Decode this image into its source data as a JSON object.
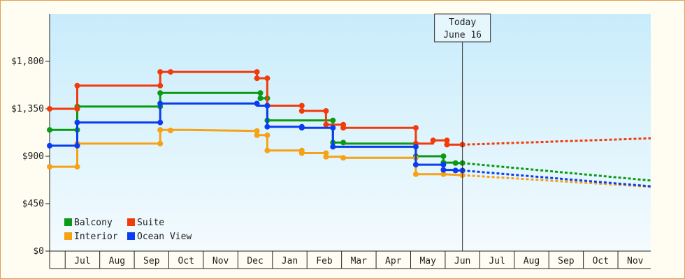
{
  "chart_data": {
    "type": "line",
    "title": "",
    "xlabel": "",
    "ylabel": "",
    "ylim": [
      0,
      2250
    ],
    "yticks": [
      {
        "value": 0,
        "label": "$0"
      },
      {
        "value": 450,
        "label": "$450"
      },
      {
        "value": 900,
        "label": "$900"
      },
      {
        "value": 1350,
        "label": "$1,350"
      },
      {
        "value": 1800,
        "label": "$1,800"
      }
    ],
    "xlim": [
      0,
      17.4
    ],
    "months": [
      {
        "label": "Jul",
        "start": 0.45
      },
      {
        "label": "Aug",
        "start": 1.45
      },
      {
        "label": "Sep",
        "start": 2.45
      },
      {
        "label": "Oct",
        "start": 3.45
      },
      {
        "label": "Nov",
        "start": 4.45
      },
      {
        "label": "Dec",
        "start": 5.45
      },
      {
        "label": "Jan",
        "start": 6.45
      },
      {
        "label": "Feb",
        "start": 7.45
      },
      {
        "label": "Mar",
        "start": 8.45
      },
      {
        "label": "Apr",
        "start": 9.45
      },
      {
        "label": "May",
        "start": 10.45
      },
      {
        "label": "Jun",
        "start": 11.45
      },
      {
        "label": "Jul",
        "start": 12.45
      },
      {
        "label": "Aug",
        "start": 13.45
      },
      {
        "label": "Sep",
        "start": 14.45
      },
      {
        "label": "Oct",
        "start": 15.45
      },
      {
        "label": "Nov",
        "start": 16.45
      }
    ],
    "today": {
      "x": 11.95,
      "line1": "Today",
      "line2": "June 16"
    },
    "series": [
      {
        "name": "Balcony",
        "color": "#0a9a14",
        "points": [
          [
            0,
            1150
          ],
          [
            0.8,
            1150
          ],
          [
            0.8,
            1372
          ],
          [
            3.2,
            1372
          ],
          [
            3.2,
            1500
          ],
          [
            6.1,
            1500
          ],
          [
            6.1,
            1450
          ],
          [
            6.3,
            1450
          ],
          [
            6.3,
            1240
          ],
          [
            8.2,
            1240
          ],
          [
            8.2,
            1030
          ],
          [
            8.5,
            1030
          ],
          [
            8.5,
            1020
          ],
          [
            10.6,
            1020
          ],
          [
            10.6,
            900
          ],
          [
            11.4,
            900
          ],
          [
            11.4,
            840
          ],
          [
            11.75,
            840
          ],
          [
            11.75,
            835
          ],
          [
            11.95,
            835
          ]
        ],
        "markers": [
          [
            0,
            1150
          ],
          [
            0.8,
            1150
          ],
          [
            0.8,
            1372
          ],
          [
            3.2,
            1372
          ],
          [
            3.2,
            1500
          ],
          [
            6.1,
            1500
          ],
          [
            6.1,
            1450
          ],
          [
            6.3,
            1450
          ],
          [
            6.3,
            1240
          ],
          [
            8.2,
            1240
          ],
          [
            8.2,
            1030
          ],
          [
            8.5,
            1030
          ],
          [
            10.6,
            1020
          ],
          [
            10.6,
            900
          ],
          [
            11.4,
            900
          ],
          [
            11.4,
            840
          ],
          [
            11.75,
            835
          ],
          [
            11.95,
            835
          ]
        ],
        "forecast": [
          [
            11.95,
            835
          ],
          [
            17.4,
            670
          ]
        ]
      },
      {
        "name": "Suite",
        "color": "#f03c0a",
        "points": [
          [
            0,
            1350
          ],
          [
            0.8,
            1350
          ],
          [
            0.8,
            1570
          ],
          [
            3.2,
            1570
          ],
          [
            3.2,
            1700
          ],
          [
            3.5,
            1700
          ],
          [
            6.0,
            1700
          ],
          [
            6.0,
            1640
          ],
          [
            6.3,
            1640
          ],
          [
            6.3,
            1380
          ],
          [
            7.3,
            1380
          ],
          [
            7.3,
            1330
          ],
          [
            8.0,
            1330
          ],
          [
            8.0,
            1200
          ],
          [
            8.5,
            1200
          ],
          [
            8.5,
            1170
          ],
          [
            10.6,
            1170
          ],
          [
            10.6,
            1020
          ],
          [
            11.1,
            1020
          ],
          [
            11.1,
            1050
          ],
          [
            11.5,
            1050
          ],
          [
            11.5,
            1010
          ],
          [
            11.95,
            1010
          ]
        ],
        "markers": [
          [
            0,
            1350
          ],
          [
            0.8,
            1350
          ],
          [
            0.8,
            1570
          ],
          [
            3.2,
            1570
          ],
          [
            3.2,
            1700
          ],
          [
            3.5,
            1700
          ],
          [
            6.0,
            1700
          ],
          [
            6.0,
            1640
          ],
          [
            6.3,
            1640
          ],
          [
            6.3,
            1380
          ],
          [
            7.3,
            1380
          ],
          [
            7.3,
            1330
          ],
          [
            8.0,
            1330
          ],
          [
            8.0,
            1200
          ],
          [
            8.5,
            1200
          ],
          [
            8.5,
            1170
          ],
          [
            10.6,
            1170
          ],
          [
            10.6,
            1020
          ],
          [
            11.1,
            1050
          ],
          [
            11.5,
            1050
          ],
          [
            11.5,
            1010
          ],
          [
            11.95,
            1010
          ]
        ],
        "forecast": [
          [
            11.95,
            1010
          ],
          [
            17.4,
            1070
          ]
        ]
      },
      {
        "name": "Interior",
        "color": "#f5a214",
        "points": [
          [
            0,
            800
          ],
          [
            0.8,
            800
          ],
          [
            0.8,
            1020
          ],
          [
            3.2,
            1020
          ],
          [
            3.2,
            1150
          ],
          [
            4.0,
            1150
          ],
          [
            6.0,
            1140
          ],
          [
            6.0,
            1100
          ],
          [
            6.3,
            1100
          ],
          [
            6.3,
            955
          ],
          [
            7.3,
            955
          ],
          [
            7.3,
            930
          ],
          [
            8.0,
            930
          ],
          [
            8.0,
            895
          ],
          [
            8.5,
            895
          ],
          [
            8.5,
            885
          ],
          [
            10.6,
            885
          ],
          [
            10.6,
            730
          ],
          [
            11.4,
            730
          ],
          [
            11.95,
            720
          ]
        ],
        "markers": [
          [
            0,
            800
          ],
          [
            0.8,
            800
          ],
          [
            0.8,
            1020
          ],
          [
            3.2,
            1020
          ],
          [
            3.2,
            1150
          ],
          [
            3.5,
            1145
          ],
          [
            6.0,
            1140
          ],
          [
            6.0,
            1100
          ],
          [
            6.3,
            1100
          ],
          [
            6.3,
            955
          ],
          [
            7.3,
            955
          ],
          [
            7.3,
            930
          ],
          [
            8.0,
            930
          ],
          [
            8.0,
            895
          ],
          [
            8.5,
            885
          ],
          [
            10.6,
            885
          ],
          [
            10.6,
            730
          ],
          [
            11.4,
            730
          ],
          [
            11.95,
            720
          ]
        ],
        "forecast": [
          [
            11.95,
            720
          ],
          [
            17.4,
            610
          ]
        ]
      },
      {
        "name": "Ocean View",
        "color": "#0a3cf0",
        "points": [
          [
            0,
            1000
          ],
          [
            0.8,
            1000
          ],
          [
            0.8,
            1220
          ],
          [
            3.2,
            1220
          ],
          [
            3.2,
            1400
          ],
          [
            6.0,
            1400
          ],
          [
            6.0,
            1380
          ],
          [
            6.3,
            1380
          ],
          [
            6.3,
            1180
          ],
          [
            7.3,
            1180
          ],
          [
            7.3,
            1170
          ],
          [
            8.2,
            1170
          ],
          [
            8.2,
            990
          ],
          [
            10.6,
            990
          ],
          [
            10.6,
            820
          ],
          [
            11.4,
            820
          ],
          [
            11.4,
            770
          ],
          [
            11.75,
            770
          ],
          [
            11.75,
            765
          ],
          [
            11.95,
            765
          ]
        ],
        "markers": [
          [
            0,
            1000
          ],
          [
            0.8,
            1000
          ],
          [
            0.8,
            1220
          ],
          [
            3.2,
            1220
          ],
          [
            3.2,
            1400
          ],
          [
            6.0,
            1400
          ],
          [
            6.3,
            1380
          ],
          [
            6.3,
            1180
          ],
          [
            7.3,
            1180
          ],
          [
            7.3,
            1170
          ],
          [
            8.2,
            1170
          ],
          [
            8.2,
            990
          ],
          [
            10.6,
            990
          ],
          [
            10.6,
            820
          ],
          [
            11.4,
            820
          ],
          [
            11.4,
            770
          ],
          [
            11.75,
            765
          ],
          [
            11.95,
            765
          ]
        ],
        "forecast": [
          [
            11.95,
            765
          ],
          [
            17.4,
            615
          ]
        ]
      }
    ],
    "legend": [
      {
        "name": "Balcony",
        "color": "#0a9a14"
      },
      {
        "name": "Suite",
        "color": "#f03c0a"
      },
      {
        "name": "Interior",
        "color": "#f5a214"
      },
      {
        "name": "Ocean View",
        "color": "#0a3cf0"
      }
    ],
    "legend_position": "bottom-left",
    "grid": false
  }
}
